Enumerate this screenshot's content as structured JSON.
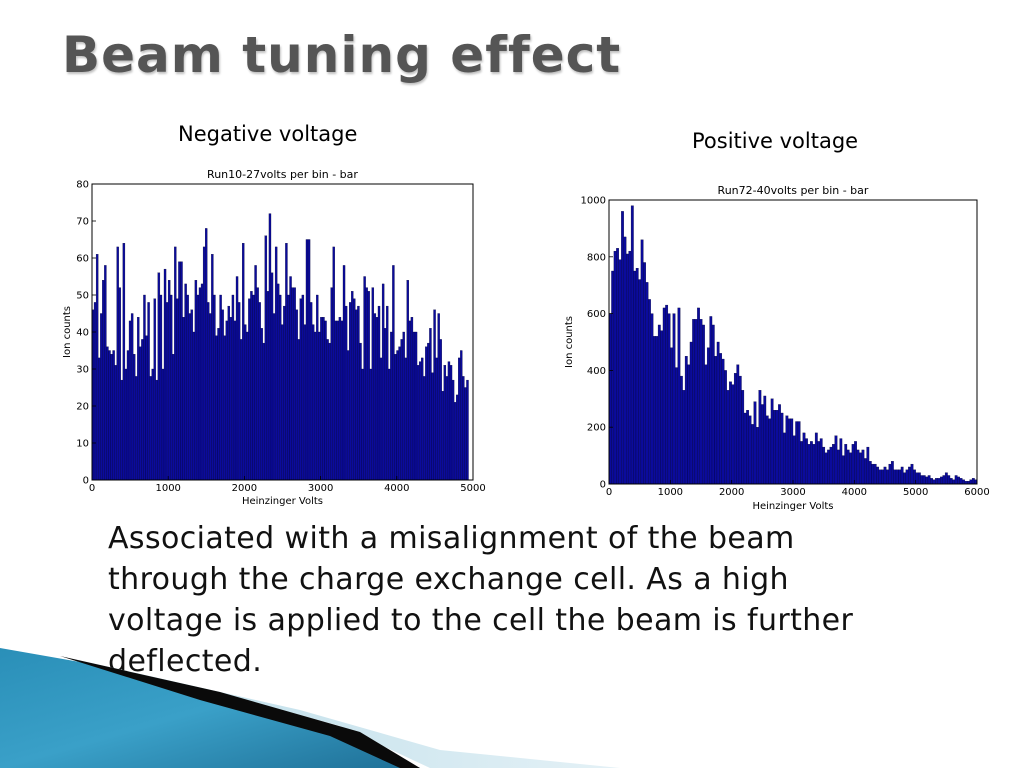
{
  "slide": {
    "title": "Beam tuning effect",
    "caption_left": "Negative voltage",
    "caption_right": "Positive voltage",
    "body": "Associated with a misalignment of the beam through the charge exchange cell. As a high voltage is applied to the cell the beam is further deflected."
  },
  "colors": {
    "bar_fill": "#0b0b9c",
    "bar_edge": "#000033",
    "title": "#555555"
  },
  "chart_data": [
    {
      "type": "bar",
      "title": "Run10-27volts per bin - bar",
      "xlabel": "Heinzinger Volts",
      "ylabel": "Ion counts",
      "xlim": [
        0,
        5000
      ],
      "ylim": [
        0,
        80
      ],
      "xticks": [
        0,
        1000,
        2000,
        3000,
        4000,
        5000
      ],
      "yticks": [
        0,
        10,
        20,
        30,
        40,
        50,
        60,
        70,
        80
      ],
      "bin_width": 27,
      "grid": false,
      "legend": false,
      "values": [
        46,
        48,
        61,
        33,
        45,
        54,
        58,
        36,
        35,
        34,
        35,
        31,
        63,
        52,
        27,
        64,
        30,
        35,
        43,
        45,
        34,
        28,
        44,
        36,
        38,
        50,
        39,
        48,
        28,
        30,
        49,
        27,
        56,
        50,
        30,
        57,
        48,
        54,
        50,
        34,
        63,
        49,
        59,
        59,
        44,
        53,
        50,
        45,
        46,
        40,
        54,
        50,
        52,
        53,
        63,
        68,
        48,
        45,
        61,
        50,
        39,
        41,
        50,
        46,
        39,
        43,
        47,
        44,
        50,
        43,
        55,
        48,
        38,
        64,
        42,
        40,
        49,
        51,
        50,
        58,
        52,
        48,
        41,
        37,
        66,
        51,
        72,
        56,
        45,
        63,
        53,
        50,
        42,
        47,
        64,
        50,
        55,
        52,
        52,
        46,
        38,
        49,
        50,
        42,
        65,
        65,
        48,
        42,
        40,
        50,
        40,
        44,
        44,
        43,
        38,
        37,
        52,
        63,
        43,
        43,
        44,
        43,
        58,
        47,
        35,
        48,
        51,
        49,
        46,
        47,
        37,
        30,
        55,
        52,
        51,
        30,
        52,
        45,
        44,
        47,
        33,
        53,
        41,
        47,
        30,
        40,
        58,
        34,
        35,
        36,
        38,
        40,
        33,
        54,
        43,
        44,
        40,
        40,
        31,
        32,
        33,
        28,
        36,
        37,
        41,
        29,
        46,
        33,
        45,
        38,
        24,
        31,
        28,
        32,
        31,
        27,
        21,
        23,
        33,
        35,
        28,
        25,
        27
      ]
    },
    {
      "type": "bar",
      "title": "Run72-40volts per bin - bar",
      "xlabel": "Heinzinger Volts",
      "ylabel": "Ion counts",
      "xlim": [
        0,
        6000
      ],
      "ylim": [
        0,
        1000
      ],
      "xticks": [
        0,
        1000,
        2000,
        3000,
        4000,
        5000,
        6000
      ],
      "yticks": [
        0,
        200,
        400,
        600,
        800,
        1000
      ],
      "bin_width": 40,
      "grid": false,
      "legend": false,
      "values": [
        600,
        750,
        820,
        830,
        790,
        960,
        870,
        810,
        820,
        980,
        750,
        760,
        720,
        860,
        780,
        710,
        650,
        600,
        520,
        520,
        560,
        540,
        620,
        630,
        600,
        480,
        600,
        410,
        620,
        380,
        330,
        450,
        420,
        500,
        580,
        580,
        620,
        580,
        560,
        420,
        480,
        590,
        560,
        450,
        500,
        460,
        440,
        400,
        330,
        360,
        350,
        390,
        420,
        380,
        330,
        250,
        260,
        240,
        210,
        290,
        200,
        330,
        280,
        310,
        240,
        230,
        300,
        260,
        260,
        280,
        250,
        180,
        240,
        230,
        230,
        170,
        220,
        220,
        150,
        180,
        160,
        140,
        150,
        140,
        180,
        150,
        160,
        130,
        110,
        120,
        130,
        140,
        170,
        120,
        160,
        100,
        140,
        120,
        110,
        140,
        150,
        120,
        110,
        120,
        90,
        130,
        80,
        70,
        70,
        60,
        50,
        50,
        60,
        50,
        70,
        80,
        50,
        50,
        50,
        60,
        40,
        50,
        60,
        70,
        50,
        40,
        40,
        30,
        30,
        25,
        30,
        20,
        15,
        20,
        20,
        25,
        30,
        40,
        30,
        20,
        15,
        30,
        25,
        20,
        15,
        10,
        10,
        15,
        20,
        15,
        10,
        10,
        10,
        10,
        5,
        20,
        25,
        30,
        25,
        20,
        10,
        10
      ]
    }
  ]
}
